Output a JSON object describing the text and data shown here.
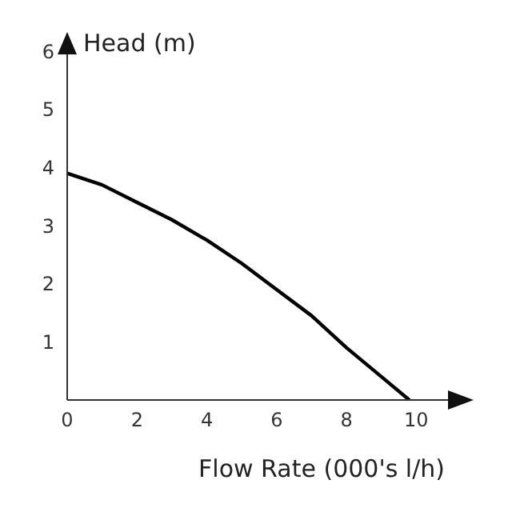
{
  "chart_data": {
    "type": "line",
    "xlabel": "Flow Rate (000's l/h)",
    "ylabel": "Head (m)",
    "x": [
      0,
      1,
      2,
      3,
      4,
      5,
      6,
      7,
      8,
      9,
      9.8
    ],
    "series": [
      {
        "color": "#000000",
        "values": [
          3.9,
          3.7,
          3.4,
          3.1,
          2.75,
          2.35,
          1.9,
          1.45,
          0.9,
          0.4,
          0
        ]
      }
    ],
    "xlim": [
      0,
      11
    ],
    "xticks": [
      0,
      2,
      4,
      6,
      8,
      10
    ],
    "ylim": [
      0,
      6
    ],
    "yticks": [
      1,
      2,
      3,
      4,
      5,
      6
    ],
    "marker": "none"
  }
}
